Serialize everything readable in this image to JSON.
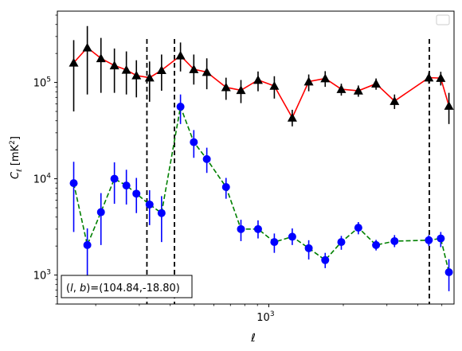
{
  "chart_data": {
    "type": "line",
    "xlabel": "ℓ",
    "ylabel": "C_ℓ [mK²]",
    "xscale": "log",
    "yscale": "log",
    "xlim": [
      140,
      5600
    ],
    "ylim": [
      500,
      550000
    ],
    "x_tick_labels": [
      {
        "value": 1000,
        "base": "10",
        "exp": "3"
      }
    ],
    "y_tick_labels": [
      {
        "value": 1000,
        "base": "10",
        "exp": "3"
      },
      {
        "value": 10000,
        "base": "10",
        "exp": "4"
      },
      {
        "value": 100000,
        "base": "10",
        "exp": "5"
      }
    ],
    "vlines": [
      322,
      416,
      4450
    ],
    "annotation": "(l, b)=(104.84,-18.80)",
    "grid": false,
    "legend": "top-right (empty)",
    "series": [
      {
        "color": "#ff0000",
        "marker": "triangle",
        "marker_color": "#000000",
        "linestyle": "solid",
        "points": [
          {
            "x": 163,
            "y": 160000,
            "lo": 50000,
            "hi": 275000
          },
          {
            "x": 185,
            "y": 230000,
            "lo": 75000,
            "hi": 385000
          },
          {
            "x": 210,
            "y": 178000,
            "lo": 78000,
            "hi": 290000
          },
          {
            "x": 238,
            "y": 150000,
            "lo": 78000,
            "hi": 225000
          },
          {
            "x": 266,
            "y": 135000,
            "lo": 75000,
            "hi": 210000
          },
          {
            "x": 292,
            "y": 118000,
            "lo": 70000,
            "hi": 170000
          },
          {
            "x": 330,
            "y": 112000,
            "lo": 63000,
            "hi": 165000
          },
          {
            "x": 369,
            "y": 134000,
            "lo": 82000,
            "hi": 195000
          },
          {
            "x": 440,
            "y": 190000,
            "lo": 130000,
            "hi": 260000
          },
          {
            "x": 498,
            "y": 137000,
            "lo": 95000,
            "hi": 195000
          },
          {
            "x": 562,
            "y": 128000,
            "lo": 85000,
            "hi": 178000
          },
          {
            "x": 672,
            "y": 89000,
            "lo": 66000,
            "hi": 112000
          },
          {
            "x": 772,
            "y": 83000,
            "lo": 61000,
            "hi": 106000
          },
          {
            "x": 905,
            "y": 106000,
            "lo": 81000,
            "hi": 130000
          },
          {
            "x": 1053,
            "y": 92000,
            "lo": 68000,
            "hi": 116000
          },
          {
            "x": 1244,
            "y": 43000,
            "lo": 35000,
            "hi": 52000
          },
          {
            "x": 1450,
            "y": 102000,
            "lo": 81000,
            "hi": 121000
          },
          {
            "x": 1690,
            "y": 110000,
            "lo": 90000,
            "hi": 131000
          },
          {
            "x": 1963,
            "y": 85000,
            "lo": 73000,
            "hi": 97000
          },
          {
            "x": 2300,
            "y": 82000,
            "lo": 71000,
            "hi": 93000
          },
          {
            "x": 2712,
            "y": 97000,
            "lo": 84000,
            "hi": 110000
          },
          {
            "x": 3220,
            "y": 64000,
            "lo": 53000,
            "hi": 75000
          },
          {
            "x": 4430,
            "y": 112000,
            "lo": 97000,
            "hi": 127000
          },
          {
            "x": 4950,
            "y": 111000,
            "lo": 93000,
            "hi": 129000
          },
          {
            "x": 5340,
            "y": 57000,
            "lo": 37000,
            "hi": 78000
          }
        ]
      },
      {
        "color": "#008000",
        "marker": "circle",
        "marker_color": "#0000ff",
        "linestyle": "dashed",
        "points": [
          {
            "x": 163,
            "y": 9000,
            "lo": 2800,
            "hi": 15000
          },
          {
            "x": 185,
            "y": 2050,
            "lo": 950,
            "hi": 3050
          },
          {
            "x": 210,
            "y": 4500,
            "lo": 2050,
            "hi": 7100
          },
          {
            "x": 238,
            "y": 10000,
            "lo": 5500,
            "hi": 14800
          },
          {
            "x": 266,
            "y": 8500,
            "lo": 5400,
            "hi": 12400
          },
          {
            "x": 292,
            "y": 7000,
            "lo": 4400,
            "hi": 10200
          },
          {
            "x": 330,
            "y": 5400,
            "lo": 3300,
            "hi": 7600
          },
          {
            "x": 369,
            "y": 4400,
            "lo": 2200,
            "hi": 6600
          },
          {
            "x": 440,
            "y": 56000,
            "lo": 37000,
            "hi": 75000
          },
          {
            "x": 498,
            "y": 24000,
            "lo": 16500,
            "hi": 32000
          },
          {
            "x": 562,
            "y": 16000,
            "lo": 11500,
            "hi": 21000
          },
          {
            "x": 672,
            "y": 8200,
            "lo": 6200,
            "hi": 10200
          },
          {
            "x": 772,
            "y": 3000,
            "lo": 2250,
            "hi": 3750
          },
          {
            "x": 905,
            "y": 3000,
            "lo": 2400,
            "hi": 3700
          },
          {
            "x": 1053,
            "y": 2200,
            "lo": 1700,
            "hi": 2700
          },
          {
            "x": 1244,
            "y": 2500,
            "lo": 2050,
            "hi": 3050
          },
          {
            "x": 1450,
            "y": 1900,
            "lo": 1450,
            "hi": 2300
          },
          {
            "x": 1690,
            "y": 1430,
            "lo": 1180,
            "hi": 1700
          },
          {
            "x": 1963,
            "y": 2200,
            "lo": 1830,
            "hi": 2550
          },
          {
            "x": 2300,
            "y": 3100,
            "lo": 2650,
            "hi": 3550
          },
          {
            "x": 2712,
            "y": 2050,
            "lo": 1800,
            "hi": 2320
          },
          {
            "x": 3220,
            "y": 2250,
            "lo": 1950,
            "hi": 2600
          },
          {
            "x": 4430,
            "y": 2300,
            "lo": 2000,
            "hi": 2600
          },
          {
            "x": 4950,
            "y": 2400,
            "lo": 1950,
            "hi": 2800
          },
          {
            "x": 5340,
            "y": 1070,
            "lo": 680,
            "hi": 1460
          }
        ]
      }
    ]
  }
}
